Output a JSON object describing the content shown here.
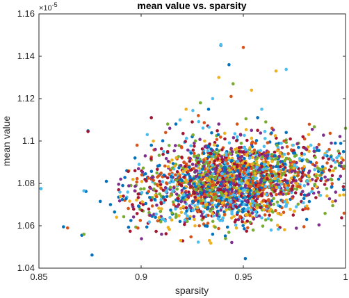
{
  "chart_data": {
    "type": "scatter",
    "title": "mean value vs. sparsity",
    "xlabel": "sparsity",
    "ylabel": "mean value",
    "xlim": [
      0.85,
      1.0
    ],
    "ylim": [
      1.04,
      1.16
    ],
    "y_exponent_label": "×10",
    "y_exponent_power": "-5",
    "xticks": [
      0.85,
      0.9,
      0.95,
      1.0
    ],
    "xtick_labels": [
      "0.85",
      "0.9",
      "0.95",
      "1"
    ],
    "yticks": [
      1.04,
      1.06,
      1.08,
      1.1,
      1.12,
      1.14,
      1.16
    ],
    "ytick_labels": [
      "1.04",
      "1.06",
      "1.08",
      "1.1",
      "1.12",
      "1.14",
      "1.16"
    ],
    "grid": false,
    "colors": [
      "#0072BD",
      "#D95319",
      "#EDB120",
      "#7E2F8E",
      "#77AC30",
      "#4DBEEE",
      "#A2142F"
    ],
    "series_points": [
      [
        [
          0.851,
          1.0775
        ],
        [
          0.862,
          1.0595
        ],
        [
          0.871,
          1.0555
        ],
        [
          0.873,
          1.0762
        ],
        [
          0.874,
          1.1048
        ],
        [
          0.876,
          1.0462
        ],
        [
          0.88,
          1.0715
        ],
        [
          0.883,
          1.081
        ],
        [
          0.885,
          1.07
        ],
        [
          0.887,
          1.0665
        ],
        [
          0.889,
          1.0735
        ],
        [
          0.891,
          1.079
        ],
        [
          0.893,
          1.086
        ],
        [
          0.895,
          1.0625
        ],
        [
          0.897,
          1.092
        ],
        [
          0.899,
          1.069
        ],
        [
          0.901,
          1.084
        ],
        [
          0.903,
          1.0755
        ],
        [
          0.905,
          1.098
        ],
        [
          0.907,
          1.064
        ],
        [
          0.909,
          1.0885
        ],
        [
          0.911,
          1.071
        ],
        [
          0.913,
          1.0945
        ],
        [
          0.915,
          1.081
        ],
        [
          0.917,
          1.108
        ],
        [
          0.919,
          1.062
        ],
        [
          0.921,
          1.087
        ],
        [
          0.923,
          1.0745
        ],
        [
          0.925,
          1.102
        ],
        [
          0.927,
          1.068
        ],
        [
          0.929,
          1.0905
        ],
        [
          0.931,
          1.0775
        ],
        [
          0.933,
          1.115
        ],
        [
          0.935,
          1.056
        ],
        [
          0.937,
          1.096
        ],
        [
          0.939,
          1.1452
        ],
        [
          0.941,
          1.083
        ],
        [
          0.943,
          1.136
        ],
        [
          0.945,
          1.072
        ],
        [
          0.947,
          1.1005
        ],
        [
          0.949,
          1.085
        ],
        [
          0.951,
          1.0445
        ],
        [
          0.953,
          1.093
        ],
        [
          0.955,
          1.079
        ],
        [
          0.957,
          1.111
        ],
        [
          0.959,
          1.069
        ],
        [
          0.961,
          1.088
        ],
        [
          0.963,
          1.0995
        ],
        [
          0.965,
          1.076
        ],
        [
          0.967,
          1.0915
        ],
        [
          0.969,
          1.081
        ],
        [
          0.971,
          1.104
        ],
        [
          0.973,
          1.0725
        ],
        [
          0.975,
          1.087
        ],
        [
          0.977,
          1.097
        ],
        [
          0.979,
          1.0835
        ],
        [
          0.981,
          1.063
        ],
        [
          0.983,
          1.09
        ],
        [
          0.985,
          1.079
        ],
        [
          0.987,
          1.0955
        ],
        [
          0.989,
          1.086
        ],
        [
          0.991,
          1.093
        ],
        [
          0.993,
          1.082
        ],
        [
          0.995,
          1.099
        ],
        [
          0.997,
          1.0885
        ],
        [
          0.999,
          1.095
        ]
      ],
      [
        [
          0.864,
          1.059
        ],
        [
          0.892,
          1.072
        ],
        [
          0.898,
          1.098
        ],
        [
          0.904,
          1.065
        ],
        [
          0.908,
          1.083
        ],
        [
          0.912,
          1.104
        ],
        [
          0.916,
          1.07
        ],
        [
          0.92,
          1.092
        ],
        [
          0.924,
          1.078
        ],
        [
          0.928,
          1.112
        ],
        [
          0.932,
          1.06
        ],
        [
          0.936,
          1.089
        ],
        [
          0.94,
          1.076
        ],
        [
          0.944,
          1.121
        ],
        [
          0.948,
          1.067
        ],
        [
          0.95,
          1.1442
        ],
        [
          0.952,
          1.084
        ],
        [
          0.956,
          1.099
        ],
        [
          0.96,
          1.072
        ],
        [
          0.964,
          1.106
        ],
        [
          0.968,
          1.086
        ],
        [
          0.972,
          1.094
        ],
        [
          0.976,
          1.08
        ],
        [
          0.98,
          1.101
        ],
        [
          0.984,
          1.089
        ],
        [
          0.988,
          1.084
        ],
        [
          0.992,
          1.096
        ],
        [
          0.996,
          1.0905
        ],
        [
          0.999,
          1.087
        ]
      ],
      [
        [
          0.888,
          1.064
        ],
        [
          0.894,
          1.086
        ],
        [
          0.9,
          1.075
        ],
        [
          0.906,
          1.1
        ],
        [
          0.91,
          1.068
        ],
        [
          0.914,
          1.09
        ],
        [
          0.918,
          1.079
        ],
        [
          0.922,
          1.115
        ],
        [
          0.926,
          1.063
        ],
        [
          0.93,
          1.094
        ],
        [
          0.934,
          1.082
        ],
        [
          0.938,
          1.13
        ],
        [
          0.942,
          1.07
        ],
        [
          0.946,
          1.096
        ],
        [
          0.95,
          1.087
        ],
        [
          0.954,
          1.124
        ],
        [
          0.958,
          1.076
        ],
        [
          0.962,
          1.093
        ],
        [
          0.966,
          1.133
        ],
        [
          0.97,
          1.085
        ],
        [
          0.974,
          1.098
        ],
        [
          0.978,
          1.078
        ],
        [
          0.982,
          1.103
        ],
        [
          0.986,
          1.088
        ],
        [
          0.99,
          1.094
        ],
        [
          0.994,
          1.086
        ],
        [
          0.998,
          1.092
        ]
      ],
      [
        [
          0.89,
          1.082
        ],
        [
          0.896,
          1.069
        ],
        [
          0.902,
          1.093
        ],
        [
          0.906,
          1.077
        ],
        [
          0.91,
          1.056
        ],
        [
          0.914,
          1.106
        ],
        [
          0.918,
          1.073
        ],
        [
          0.922,
          1.088
        ],
        [
          0.926,
          1.099
        ],
        [
          0.93,
          1.066
        ],
        [
          0.934,
          1.085
        ],
        [
          0.938,
          1.108
        ],
        [
          0.942,
          1.074
        ],
        [
          0.946,
          1.09
        ],
        [
          0.95,
          1.081
        ],
        [
          0.954,
          1.105
        ],
        [
          0.958,
          1.07
        ],
        [
          0.962,
          1.092
        ],
        [
          0.966,
          1.084
        ],
        [
          0.97,
          1.1
        ],
        [
          0.974,
          1.077
        ],
        [
          0.978,
          1.091
        ],
        [
          0.982,
          1.085
        ],
        [
          0.986,
          1.097
        ],
        [
          0.99,
          1.083
        ],
        [
          0.994,
          1.091
        ],
        [
          0.998,
          1.088
        ]
      ],
      [
        [
          0.872,
          1.056
        ],
        [
          0.895,
          1.079
        ],
        [
          0.901,
          1.067
        ],
        [
          0.905,
          1.091
        ],
        [
          0.909,
          1.075
        ],
        [
          0.913,
          1.108
        ],
        [
          0.917,
          1.064
        ],
        [
          0.921,
          1.087
        ],
        [
          0.925,
          1.078
        ],
        [
          0.929,
          1.118
        ],
        [
          0.933,
          1.07
        ],
        [
          0.937,
          1.094
        ],
        [
          0.941,
          1.083
        ],
        [
          0.945,
          1.127
        ],
        [
          0.949,
          1.074
        ],
        [
          0.953,
          1.096
        ],
        [
          0.957,
          1.085
        ],
        [
          0.961,
          1.109
        ],
        [
          0.965,
          1.076
        ],
        [
          0.969,
          1.094
        ],
        [
          0.973,
          1.088
        ],
        [
          0.977,
          1.099
        ],
        [
          0.981,
          1.081
        ],
        [
          0.985,
          1.095
        ],
        [
          0.989,
          1.087
        ],
        [
          0.993,
          1.093
        ],
        [
          0.997,
          1.0895
        ],
        [
          1.0,
          1.106
        ]
      ],
      [
        [
          0.851,
          1.0775
        ],
        [
          0.872,
          1.0765
        ],
        [
          0.893,
          1.0735
        ],
        [
          0.899,
          1.089
        ],
        [
          0.903,
          1.103
        ],
        [
          0.907,
          1.072
        ],
        [
          0.911,
          1.095
        ],
        [
          0.915,
          1.082
        ],
        [
          0.919,
          1.11
        ],
        [
          0.923,
          1.068
        ],
        [
          0.927,
          1.091
        ],
        [
          0.931,
          1.08
        ],
        [
          0.935,
          1.12
        ],
        [
          0.939,
          1.1455
        ],
        [
          0.943,
          1.087
        ],
        [
          0.947,
          1.102
        ],
        [
          0.951,
          1.078
        ],
        [
          0.955,
          1.094
        ],
        [
          0.959,
          1.115
        ],
        [
          0.963,
          1.083
        ],
        [
          0.967,
          1.096
        ],
        [
          0.971,
          1.1338
        ],
        [
          0.975,
          1.089
        ],
        [
          0.979,
          1.076
        ],
        [
          0.983,
          1.098
        ],
        [
          0.987,
          1.087
        ],
        [
          0.991,
          1.095
        ],
        [
          0.995,
          1.09
        ]
      ],
      [
        [
          0.874,
          1.1045
        ],
        [
          0.889,
          1.077
        ],
        [
          0.897,
          1.086
        ],
        [
          0.901,
          1.07
        ],
        [
          0.905,
          1.111
        ],
        [
          0.909,
          1.081
        ],
        [
          0.913,
          1.095
        ],
        [
          0.917,
          1.069
        ],
        [
          0.921,
          1.09
        ],
        [
          0.925,
          1.109
        ],
        [
          0.929,
          1.076
        ],
        [
          0.933,
          1.088
        ],
        [
          0.937,
          1.072
        ],
        [
          0.941,
          1.101
        ],
        [
          0.945,
          1.084
        ],
        [
          0.949,
          1.097
        ],
        [
          0.953,
          1.079
        ],
        [
          0.957,
          1.105
        ],
        [
          0.961,
          1.086
        ],
        [
          0.965,
          1.093
        ],
        [
          0.969,
          1.081
        ],
        [
          0.973,
          1.101
        ],
        [
          0.977,
          1.087
        ],
        [
          0.981,
          1.096
        ],
        [
          0.985,
          1.084
        ],
        [
          0.989,
          1.092
        ],
        [
          0.993,
          1.088
        ],
        [
          0.997,
          1.094
        ]
      ]
    ]
  }
}
